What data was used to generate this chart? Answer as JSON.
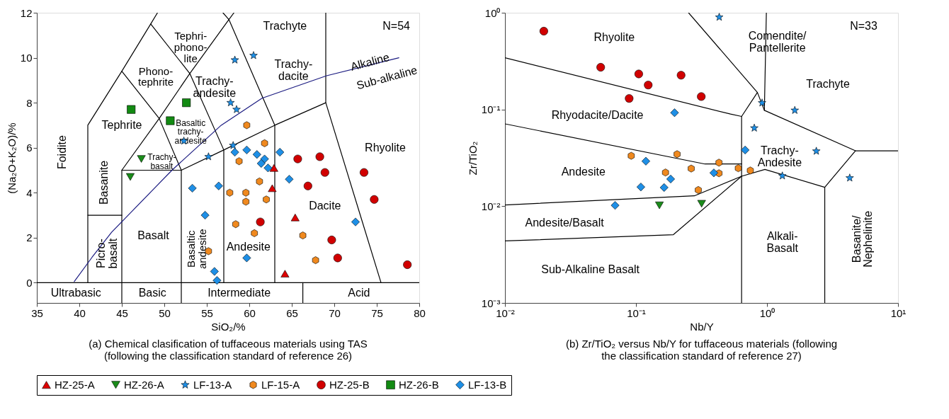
{
  "chart_data": [
    {
      "type": "scatter",
      "title": "(a) Chemical clasification of tuffaceous materials using TAS\n(following the classification standard of reference 26)",
      "xlabel": "SiO₂/%",
      "ylabel": "(Na₂O+K₂O)/%",
      "xlim": [
        35,
        80
      ],
      "xticks": [
        35,
        40,
        45,
        50,
        55,
        60,
        65,
        70,
        75,
        80
      ],
      "ylim": [
        -0.9,
        12
      ],
      "yticks": [
        0,
        2,
        4,
        6,
        8,
        10,
        12
      ],
      "legend": "bottom",
      "series": [
        {
          "type": "line",
          "color": "#000000",
          "x": [
            41,
            41,
            45,
            48.4,
            49.2
          ],
          "values": [
            0,
            7,
            9.4,
            11.5,
            12
          ]
        },
        {
          "type": "line",
          "color": "#000000",
          "x": [
            45,
            45,
            52,
            57,
            63,
            69,
            69
          ],
          "values": [
            -0.9,
            5,
            5,
            5.9,
            7,
            8,
            12
          ]
        },
        {
          "type": "line",
          "color": "#000000",
          "x": [
            45,
            49.4,
            53,
            57.6,
            58.2
          ],
          "values": [
            5,
            7.3,
            9.3,
            11.7,
            12
          ]
        },
        {
          "type": "line",
          "color": "#000000",
          "x": [
            45,
            49.4,
            52,
            52
          ],
          "values": [
            9.4,
            7.3,
            5,
            -0.9
          ]
        },
        {
          "type": "line",
          "color": "#000000",
          "x": [
            48.4,
            53,
            57,
            57
          ],
          "values": [
            11.5,
            9.3,
            5.9,
            0
          ]
        },
        {
          "type": "line",
          "color": "#000000",
          "x": [
            63,
            63,
            57.6,
            56.9
          ],
          "values": [
            0,
            7,
            11.7,
            12
          ]
        },
        {
          "type": "line",
          "color": "#000000",
          "x": [
            41,
            45
          ],
          "values": [
            3,
            3
          ]
        },
        {
          "type": "line",
          "color": "#000000",
          "x": [
            69,
            75.5
          ],
          "values": [
            8,
            0
          ]
        },
        {
          "type": "line",
          "color": "#000000",
          "x": [
            35,
            80
          ],
          "values": [
            0,
            0
          ]
        },
        {
          "type": "line",
          "color": "#000000",
          "x": [
            66.3,
            66.3
          ],
          "values": [
            0,
            -0.9
          ]
        },
        {
          "type": "line",
          "color": "#1a1a80",
          "x": [
            39.4,
            41.5,
            43.8,
            50.9,
            56.7,
            61.5,
            69.1,
            77.6
          ],
          "values": [
            0.05,
            1.13,
            2.24,
            5.0,
            7.0,
            8.2,
            9.2,
            10.0
          ]
        },
        {
          "name": "HZ-25-A",
          "color": "#dd0000",
          "marker": "triangle",
          "x": [
            62.9,
            62.7,
            65.4,
            64.2
          ],
          "values": [
            5.1,
            4.2,
            2.9,
            0.4
          ]
        },
        {
          "name": "HZ-26-A",
          "color": "#1a8c1a",
          "marker": "triangle-down",
          "x": [
            47.3,
            46.0
          ],
          "values": [
            5.5,
            4.7
          ]
        },
        {
          "name": "LF-13-A",
          "color": "#1e8fe6",
          "marker": "star",
          "x": [
            52.3,
            55.2,
            58.3,
            60.5,
            57.8,
            58.5,
            58.1
          ],
          "values": [
            6.3,
            5.6,
            9.9,
            10.1,
            8.0,
            7.7,
            6.1
          ]
        },
        {
          "name": "LF-15-A",
          "color": "#f0891e",
          "x": [
            55.2,
            59.7,
            61.8,
            58.8,
            61.2,
            57.7,
            59.6,
            59.6,
            62.0,
            58.4,
            60.6,
            66.3,
            67.8
          ],
          "values": [
            1.4,
            7.0,
            6.2,
            5.4,
            4.5,
            4.0,
            4.0,
            3.6,
            3.7,
            2.6,
            2.2,
            2.1,
            1.0
          ]
        },
        {
          "name": "HZ-25-B",
          "color": "#d10000",
          "marker": "circle",
          "x": [
            65.7,
            68.3,
            68.9,
            73.5,
            66.9,
            74.7,
            61.3,
            69.7,
            70.4,
            78.6
          ],
          "values": [
            5.5,
            5.6,
            4.9,
            4.9,
            4.3,
            3.7,
            2.7,
            1.9,
            1.1,
            0.8
          ]
        },
        {
          "name": "HZ-26-B",
          "color": "#128a12",
          "marker": "square",
          "x": [
            46.1,
            52.6,
            50.7
          ],
          "values": [
            7.7,
            8.0,
            7.2
          ]
        },
        {
          "name": "LF-13-B",
          "color": "#1e8fe6",
          "marker": "diamond",
          "x": [
            53.3,
            56.4,
            54.8,
            55.9,
            56.2,
            58.3,
            59.7,
            60.9,
            61.8,
            61.4,
            62.2,
            63.6,
            64.7,
            72.5,
            59.7
          ],
          "values": [
            4.2,
            4.3,
            3.0,
            0.5,
            0.1,
            5.8,
            5.9,
            5.7,
            5.5,
            5.3,
            5.1,
            5.8,
            4.6,
            2.7,
            1.1
          ]
        }
      ],
      "annotations": [
        "Foidite",
        "Tephri-\nphono-\nlite",
        "Phono-\ntephrite",
        "Tephrite",
        "Basanite",
        "Picro-\nbasalt",
        "Basalt",
        "Basaltic\ntrachy-\nandesite",
        "Trachy-\nbasalt",
        "Basaltic\nandesite",
        "Trachy-\nandesite",
        "Trachyte",
        "Trachy-\ndacite",
        "Andesite",
        "Dacite",
        "Rhyolite",
        "Alkaline",
        "Sub-alkaline",
        "Ultrabasic",
        "Basic",
        "Intermediate",
        "Acid",
        "N=54"
      ]
    },
    {
      "type": "scatter",
      "title": "(b) Zr/TiO₂ versus Nb/Y for tuffaceous materials (following\nthe classification standard of reference 27)",
      "xlabel": "Nb/Y",
      "ylabel": "Zr/TiO₂",
      "log": "xy",
      "xlim": [
        0.01,
        10
      ],
      "xticks": [
        {
          "value": 0.01,
          "label": "10⁻²"
        },
        {
          "value": 0.1,
          "label": "10⁻¹"
        },
        {
          "value": 1,
          "label": "10⁰"
        },
        {
          "value": 10,
          "label": "10¹"
        }
      ],
      "ylim": [
        0.001,
        1
      ],
      "yticks": [
        {
          "value": 0.001,
          "label": "10⁻³"
        },
        {
          "value": 0.01,
          "label": "10⁻²"
        },
        {
          "value": 0.1,
          "label": "10⁻¹"
        },
        {
          "value": 1,
          "label": "10⁰"
        }
      ],
      "series": [
        {
          "type": "line",
          "color": "#000000",
          "x": [
            0.01,
            0.527,
            0.64,
            0.64
          ],
          "values": [
            0.343,
            0.0896,
            0.0847,
            0.001
          ]
        },
        {
          "type": "line",
          "color": "#000000",
          "x": [
            0.64,
            0.845,
            0.955,
            4.73,
            2.76,
            2.76
          ],
          "values": [
            0.0847,
            0.15,
            0.098,
            0.0374,
            0.0157,
            0.001
          ]
        },
        {
          "type": "line",
          "color": "#000000",
          "x": [
            0.01,
            0.336,
            0.64
          ],
          "values": [
            0.071,
            0.0273,
            0.0273
          ]
        },
        {
          "type": "line",
          "color": "#000000",
          "x": [
            0.01,
            0.279,
            0.64,
            0.964,
            2.76
          ],
          "values": [
            0.0103,
            0.0128,
            0.0204,
            0.024,
            0.0157
          ]
        },
        {
          "type": "line",
          "color": "#000000",
          "x": [
            0.01,
            0.193,
            0.64
          ],
          "values": [
            0.00437,
            0.00508,
            0.0204
          ]
        },
        {
          "type": "line",
          "color": "#000000",
          "x": [
            4.73,
            10
          ],
          "values": [
            0.0374,
            0.0374
          ]
        },
        {
          "type": "line",
          "color": "#000000",
          "x": [
            0.252,
            0.845
          ],
          "values": [
            1,
            0.15
          ]
        },
        {
          "type": "line",
          "color": "#000000",
          "x": [
            0.989,
            0.955
          ],
          "values": [
            1,
            0.098
          ]
        },
        {
          "name": "HZ-26-A",
          "color": "#1a8c1a",
          "marker": "triangle-down",
          "x": [
            0.151,
            0.317
          ],
          "values": [
            0.0102,
            0.0106
          ]
        },
        {
          "name": "LF-13-A",
          "color": "#1e8fe6",
          "marker": "star",
          "x": [
            0.432,
            0.917,
            1.63,
            0.8,
            2.38,
            1.31,
            4.28
          ],
          "values": [
            0.9,
            0.117,
            0.098,
            0.0643,
            0.0371,
            0.0206,
            0.0196
          ]
        },
        {
          "name": "LF-15-A",
          "color": "#f0891e",
          "x": [
            0.092,
            0.206,
            0.43,
            0.264,
            0.168,
            0.43,
            0.299,
            0.604,
            0.746
          ],
          "values": [
            0.0332,
            0.0345,
            0.0282,
            0.0245,
            0.0223,
            0.0219,
            0.0147,
            0.0247,
            0.0234
          ]
        },
        {
          "name": "HZ-25-B",
          "color": "#d10000",
          "marker": "circle",
          "x": [
            0.0198,
            0.0538,
            0.105,
            0.221,
            0.124,
            0.0887,
            0.315
          ],
          "values": [
            0.645,
            0.273,
            0.233,
            0.226,
            0.179,
            0.13,
            0.136
          ]
        },
        {
          "name": "LF-13-B",
          "color": "#1e8fe6",
          "marker": "diamond",
          "x": [
            0.197,
            0.119,
            0.184,
            0.109,
            0.164,
            0.393,
            0.0693,
            0.681
          ],
          "values": [
            0.0926,
            0.0292,
            0.0191,
            0.0158,
            0.0156,
            0.0221,
            0.0102,
            0.0381
          ]
        }
      ],
      "annotations": [
        "Rhyolite",
        "Comendite/\nPantellerite",
        "Trachyte",
        "Rhyodacite/Dacite",
        "Trachy-\nAndesite",
        "Andesite",
        "Andesite/Basalt",
        "Sub-Alkaline Basalt",
        "Alkali-\nBasalt",
        "Basanite/\nNephelinite",
        "N=33"
      ]
    }
  ]
}
